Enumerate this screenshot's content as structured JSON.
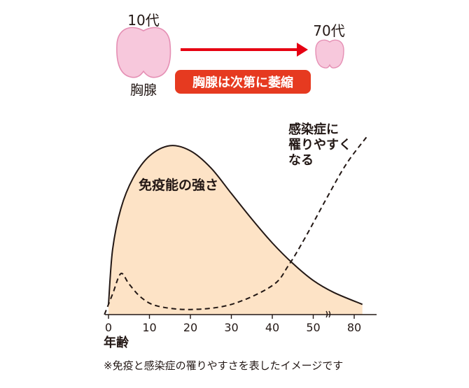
{
  "colors": {
    "thymus_fill": "#f7c8dc",
    "thymus_stroke": "#e58fb4",
    "arrow": "#e60012",
    "badge": "#e63a20",
    "curve_fill": "#fde3c6",
    "curve_stroke": "#231815",
    "axis": "#231815",
    "text": "#231815"
  },
  "thymus_panel": {
    "age_young": "10代",
    "age_old": "70代",
    "organ_label": "胸腺",
    "change_badge": "胸腺は次第に萎縮",
    "young_icon": "thymus-large-icon",
    "old_icon": "thymus-small-icon"
  },
  "chart_data": {
    "type": "area",
    "title": "",
    "xlabel": "年齢",
    "ylabel": "",
    "x_ticks": [
      "0",
      "10",
      "20",
      "30",
      "40",
      "50",
      "80"
    ],
    "axis_break": "between 50 and 80",
    "ylim": [
      0,
      1
    ],
    "grid": false,
    "series": [
      {
        "name": "免疫能の強さ",
        "style": "solid-filled",
        "points": [
          [
            0,
            0.06
          ],
          [
            1,
            0.38
          ],
          [
            3,
            0.62
          ],
          [
            6,
            0.8
          ],
          [
            10,
            0.93
          ],
          [
            15,
            0.99
          ],
          [
            20,
            0.96
          ],
          [
            25,
            0.86
          ],
          [
            30,
            0.71
          ],
          [
            35,
            0.56
          ],
          [
            40,
            0.42
          ],
          [
            45,
            0.3
          ],
          [
            50,
            0.2
          ],
          [
            55,
            0.13
          ],
          [
            62,
            0.06
          ]
        ]
      },
      {
        "name": "感染症に\n罹りやすくなる",
        "style": "dashed",
        "points": [
          [
            -1,
            0.0
          ],
          [
            1,
            0.12
          ],
          [
            3,
            0.24
          ],
          [
            5,
            0.18
          ],
          [
            8,
            0.1
          ],
          [
            12,
            0.05
          ],
          [
            20,
            0.03
          ],
          [
            30,
            0.06
          ],
          [
            40,
            0.17
          ],
          [
            44,
            0.29
          ],
          [
            48,
            0.45
          ],
          [
            53,
            0.67
          ],
          [
            58,
            0.88
          ],
          [
            63,
            1.04
          ]
        ]
      }
    ],
    "annotations": {
      "immunity_label": "免疫能の強さ",
      "infection_label_lines": [
        "感染症に",
        "罹りやすく",
        "なる"
      ]
    },
    "footnote": "※免疫と感染症の罹りやすさを表したイメージです"
  }
}
